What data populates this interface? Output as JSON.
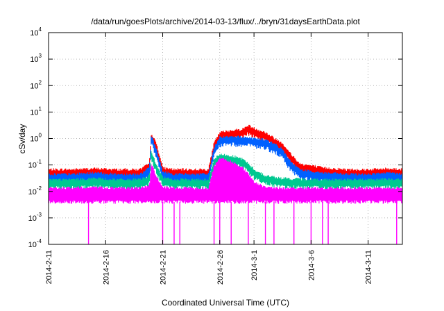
{
  "chart_data": {
    "type": "line",
    "title": "/data/run/goesPlots/archive/2014-03-13/flux/../bryn/31daysEarthData.plot",
    "xlabel": "Coordinated Universal Time (UTC)",
    "ylabel": "cSv/day",
    "y_scale": "log",
    "ylim": [
      0.0001,
      10000
    ],
    "xlim": [
      "2014-02-11",
      "2014-03-14"
    ],
    "y_ticks": [
      {
        "base": "10",
        "exp": "-4",
        "value": 0.0001
      },
      {
        "base": "10",
        "exp": "-3",
        "value": 0.001
      },
      {
        "base": "10",
        "exp": "-2",
        "value": 0.01
      },
      {
        "base": "10",
        "exp": "-1",
        "value": 0.1
      },
      {
        "base": "10",
        "exp": "0",
        "value": 1
      },
      {
        "base": "10",
        "exp": "1",
        "value": 10
      },
      {
        "base": "10",
        "exp": "2",
        "value": 100
      },
      {
        "base": "10",
        "exp": "3",
        "value": 1000
      },
      {
        "base": "10",
        "exp": "4",
        "value": 10000
      }
    ],
    "x_ticks": [
      "2014-2-11",
      "2014-2-16",
      "2014-2-21",
      "2014-2-26",
      "2014-3-1",
      "2014-3-6",
      "2014-3-11"
    ],
    "x_tick_dates": [
      "2014-02-11",
      "2014-02-16",
      "2014-02-21",
      "2014-02-26",
      "2014-03-01",
      "2014-03-06",
      "2014-03-11"
    ],
    "grid": true,
    "series": [
      {
        "color": "#ff0000",
        "x": [
          "2014-02-11",
          "2014-02-13",
          "2014-02-15",
          "2014-02-17",
          "2014-02-19",
          "2014-02-19T20:00",
          "2014-02-20",
          "2014-02-20T12:00",
          "2014-02-21",
          "2014-02-22",
          "2014-02-24",
          "2014-02-25",
          "2014-02-25T12:00",
          "2014-02-26",
          "2014-02-27",
          "2014-02-28",
          "2014-02-28T12:00",
          "2014-03-01",
          "2014-03-02",
          "2014-03-03",
          "2014-03-03T12:00",
          "2014-03-04",
          "2014-03-05",
          "2014-03-07",
          "2014-03-09",
          "2014-03-11",
          "2014-03-13",
          "2014-03-14"
        ],
        "y": [
          0.06,
          0.06,
          0.065,
          0.06,
          0.06,
          0.1,
          1.5,
          0.5,
          0.07,
          0.06,
          0.06,
          0.06,
          0.6,
          1.5,
          1.8,
          2.0,
          2.8,
          2.2,
          1.5,
          0.8,
          0.6,
          0.3,
          0.1,
          0.07,
          0.06,
          0.06,
          0.065,
          0.06
        ]
      },
      {
        "color": "#0060ff",
        "x": [
          "2014-02-11",
          "2014-02-13",
          "2014-02-15",
          "2014-02-17",
          "2014-02-19",
          "2014-02-19T20:00",
          "2014-02-20",
          "2014-02-20T12:00",
          "2014-02-21",
          "2014-02-22",
          "2014-02-24",
          "2014-02-25",
          "2014-02-25T12:00",
          "2014-02-26",
          "2014-02-27",
          "2014-02-28",
          "2014-02-28T12:00",
          "2014-03-01",
          "2014-03-02",
          "2014-03-03",
          "2014-03-03T12:00",
          "2014-03-04",
          "2014-03-05",
          "2014-03-07",
          "2014-03-09",
          "2014-03-11",
          "2014-03-13",
          "2014-03-14"
        ],
        "y": [
          0.04,
          0.04,
          0.045,
          0.04,
          0.04,
          0.07,
          1.2,
          0.3,
          0.05,
          0.04,
          0.04,
          0.04,
          0.4,
          1.0,
          1.1,
          1.0,
          1.0,
          0.9,
          0.8,
          0.5,
          0.35,
          0.15,
          0.06,
          0.045,
          0.04,
          0.04,
          0.045,
          0.04
        ]
      },
      {
        "color": "#00c890",
        "x": [
          "2014-02-11",
          "2014-02-13",
          "2014-02-15",
          "2014-02-17",
          "2014-02-19",
          "2014-02-19T20:00",
          "2014-02-20",
          "2014-02-20T12:00",
          "2014-02-21",
          "2014-02-22",
          "2014-02-24",
          "2014-02-25",
          "2014-02-25T12:00",
          "2014-02-26",
          "2014-02-27",
          "2014-02-28",
          "2014-02-28T12:00",
          "2014-03-01",
          "2014-03-02",
          "2014-03-03",
          "2014-03-03T12:00",
          "2014-03-04",
          "2014-03-05",
          "2014-03-07",
          "2014-03-09",
          "2014-03-11",
          "2014-03-13",
          "2014-03-14"
        ],
        "y": [
          0.025,
          0.025,
          0.028,
          0.025,
          0.025,
          0.035,
          0.3,
          0.08,
          0.03,
          0.025,
          0.025,
          0.025,
          0.15,
          0.22,
          0.2,
          0.15,
          0.1,
          0.06,
          0.035,
          0.03,
          0.028,
          0.027,
          0.026,
          0.025,
          0.025,
          0.025,
          0.026,
          0.025
        ]
      },
      {
        "color": "#ff00ff",
        "x": [
          "2014-02-11",
          "2014-02-13",
          "2014-02-15",
          "2014-02-17",
          "2014-02-19",
          "2014-02-19T20:00",
          "2014-02-20",
          "2014-02-20T12:00",
          "2014-02-21",
          "2014-02-22",
          "2014-02-24",
          "2014-02-25",
          "2014-02-25T12:00",
          "2014-02-26",
          "2014-02-27",
          "2014-02-28",
          "2014-02-28T12:00",
          "2014-03-01",
          "2014-03-02",
          "2014-03-03",
          "2014-03-03T12:00",
          "2014-03-04",
          "2014-03-05",
          "2014-03-07",
          "2014-03-09",
          "2014-03-11",
          "2014-03-13",
          "2014-03-14"
        ],
        "y": [
          0.012,
          0.012,
          0.013,
          0.012,
          0.012,
          0.015,
          0.1,
          0.03,
          0.013,
          0.012,
          0.012,
          0.012,
          0.08,
          0.16,
          0.12,
          0.07,
          0.04,
          0.02,
          0.013,
          0.012,
          0.012,
          0.012,
          0.012,
          0.012,
          0.012,
          0.012,
          0.012,
          0.012
        ],
        "y_floor": 0.004,
        "dropouts": [
          "2014-02-14T12:00",
          "2014-02-21",
          "2014-02-22",
          "2014-02-22T12:00",
          "2014-02-25T12:00",
          "2014-02-26",
          "2014-02-27",
          "2014-02-28T12:00",
          "2014-03-02",
          "2014-03-02T18:00",
          "2014-03-04T12:00",
          "2014-03-06",
          "2014-03-07",
          "2014-03-07T12:00",
          "2014-03-13T12:00"
        ]
      }
    ]
  }
}
